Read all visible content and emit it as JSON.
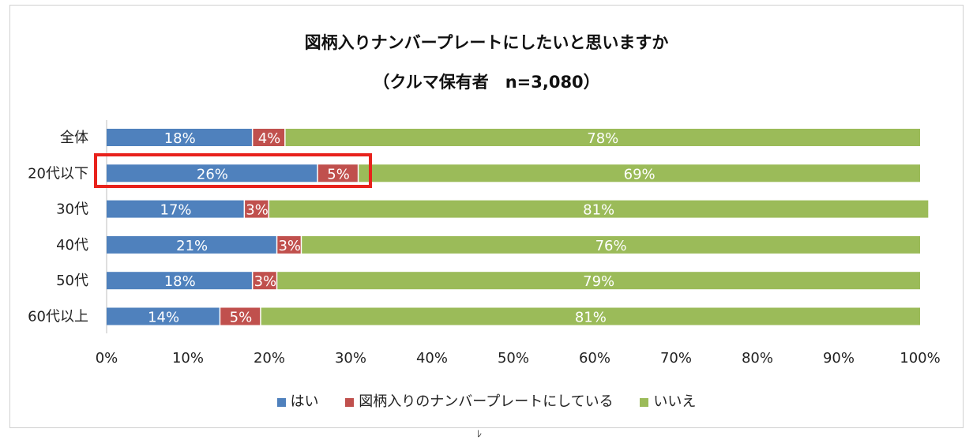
{
  "title_line1": "図柄入りナンバープレートにしたいと思いますか",
  "title_line2": "（クルマ保有者　n=3,080）",
  "chart_data": {
    "type": "bar",
    "orientation": "horizontal",
    "stacked": true,
    "categories": [
      "全体",
      "20代以下",
      "30代",
      "40代",
      "50代",
      "60代以上"
    ],
    "series": [
      {
        "name": "はい",
        "color": "#4f81bd",
        "values": [
          18,
          26,
          17,
          21,
          18,
          14
        ],
        "labels": [
          "18%",
          "26%",
          "17%",
          "21%",
          "18%",
          "14%"
        ]
      },
      {
        "name": "図柄入りのナンバープレートにしている",
        "color": "#c0504d",
        "values": [
          4,
          5,
          3,
          3,
          3,
          5
        ],
        "labels": [
          "4%",
          "5%",
          "3%",
          "3%",
          "3%",
          "5%"
        ]
      },
      {
        "name": "いいえ",
        "color": "#9bbb59",
        "values": [
          78,
          69,
          81,
          76,
          79,
          81
        ],
        "labels": [
          "78%",
          "69%",
          "81%",
          "76%",
          "79%",
          "81%"
        ]
      }
    ],
    "xlim": [
      0,
      100
    ],
    "xticks": [
      "0%",
      "10%",
      "20%",
      "30%",
      "40%",
      "50%",
      "60%",
      "70%",
      "80%",
      "90%",
      "100%"
    ],
    "legend": "bottom",
    "highlighted_category": "20代以下"
  },
  "footer_mark": "ﾚ"
}
